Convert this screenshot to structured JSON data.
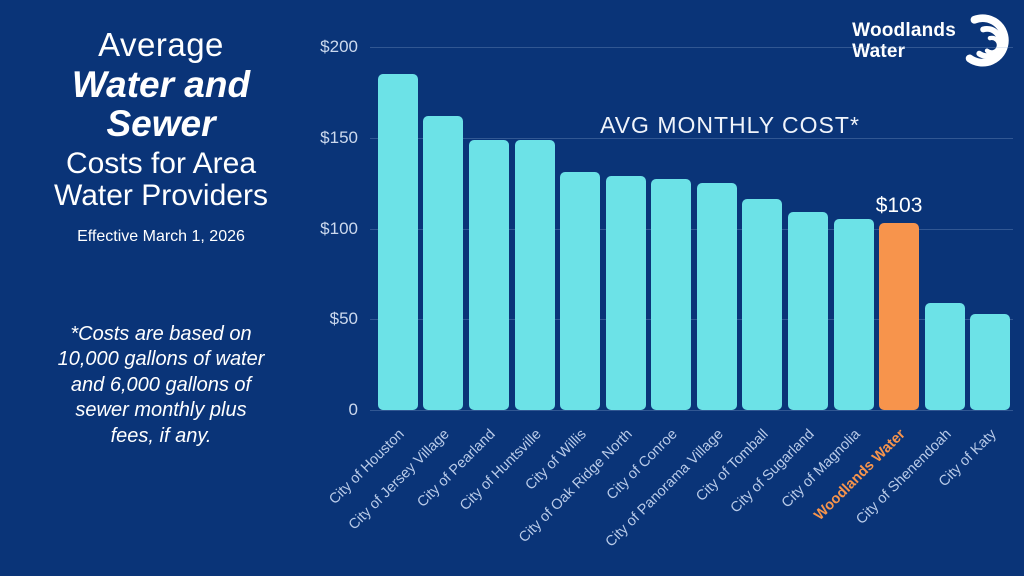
{
  "page": {
    "background_color": "#0a3478",
    "bar_color": "#6ce2e7",
    "highlight_color": "#f7944c",
    "axis_label_color": "#ccd9ee"
  },
  "left_panel": {
    "title_line1": "Average",
    "title_line2": "Water and\nSewer",
    "title_line3": "Costs for Area\nWater Providers",
    "effective_date": "Effective March 1, 2026",
    "footnote": "*Costs are based on\n10,000 gallons of water\nand 6,000 gallons of\nsewer monthly plus\nfees, if any."
  },
  "logo": {
    "line1": "Woodlands",
    "line2": "Water",
    "icon": "crescent-waves-icon"
  },
  "chart_data": {
    "type": "bar",
    "title": "AVG MONTHLY COST*",
    "categories": [
      "City of Houston",
      "City of Jersey Village",
      "City of Pearland",
      "City of Huntsville",
      "City of Willis",
      "City of Oak Ridge North",
      "City of Conroe",
      "City of Panorama Village",
      "City of Tomball",
      "City of Sugarland",
      "City of Magnolia",
      "Woodlands Water",
      "City of Shenendoah",
      "City of Katy"
    ],
    "values": [
      185,
      162,
      149,
      149,
      131,
      129,
      127,
      125,
      116,
      109,
      105,
      103,
      59,
      53
    ],
    "highlight_index": 11,
    "highlight_value_label": "$103",
    "bar_color": "#6ce2e7",
    "highlight_color": "#f7944c",
    "y_ticks": [
      {
        "label": "$200",
        "value": 200
      },
      {
        "label": "$150",
        "value": 150
      },
      {
        "label": "$100",
        "value": 100
      },
      {
        "label": "$50",
        "value": 50
      },
      {
        "label": "0",
        "value": 0
      }
    ],
    "ylim": [
      0,
      200
    ],
    "grid": true,
    "legend_position": "none",
    "xlabel": "",
    "ylabel": ""
  }
}
